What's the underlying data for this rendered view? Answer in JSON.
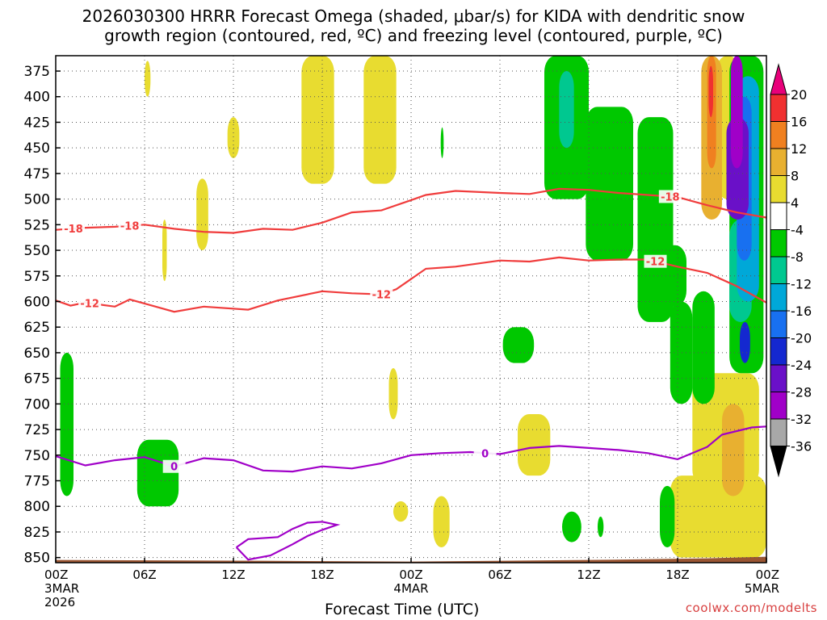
{
  "title_line1": "2026030300 HRRR Forecast Omega (shaded, μbar/s) for KIDA with dendritic snow",
  "title_line2": "growth region (contoured, red, ºC) and freezing level (contoured, purple, ºC)",
  "watermark": "coolwx.com/modelts",
  "chart_data": {
    "type": "time-height contour",
    "xlabel": "Forecast Time (UTC)",
    "x_range_hours": [
      0,
      48
    ],
    "x_ticks": [
      {
        "hour": 0,
        "label": "00Z",
        "sub1": "3MAR",
        "sub2": "2026"
      },
      {
        "hour": 6,
        "label": "06Z",
        "sub1": "",
        "sub2": ""
      },
      {
        "hour": 12,
        "label": "12Z",
        "sub1": "",
        "sub2": ""
      },
      {
        "hour": 18,
        "label": "18Z",
        "sub1": "",
        "sub2": ""
      },
      {
        "hour": 24,
        "label": "00Z",
        "sub1": "4MAR",
        "sub2": ""
      },
      {
        "hour": 30,
        "label": "06Z",
        "sub1": "",
        "sub2": ""
      },
      {
        "hour": 36,
        "label": "12Z",
        "sub1": "",
        "sub2": ""
      },
      {
        "hour": 42,
        "label": "18Z",
        "sub1": "",
        "sub2": ""
      },
      {
        "hour": 48,
        "label": "00Z",
        "sub1": "5MAR",
        "sub2": ""
      }
    ],
    "y_range_hpa": [
      360,
      855
    ],
    "y_ticks": [
      375,
      400,
      425,
      450,
      475,
      500,
      525,
      550,
      575,
      600,
      625,
      650,
      675,
      700,
      725,
      750,
      775,
      800,
      825,
      850
    ],
    "colorbar": {
      "labels": [
        "20",
        "16",
        "12",
        "8",
        "4",
        "-4",
        "-8",
        "-12",
        "-16",
        "-20",
        "-24",
        "-28",
        "-32",
        "-36"
      ],
      "colors": [
        "#e8007a",
        "#f03030",
        "#f08020",
        "#e8b030",
        "#e8dc30",
        "#ffffff",
        "#00c800",
        "#00c890",
        "#00a8d8",
        "#1870f0",
        "#1428d0",
        "#6a10c8",
        "#a000c8",
        "#a8a8a8",
        "#000000"
      ]
    },
    "contours": {
      "dgz_minus18": {
        "label": "-18",
        "color": "#f03c3c",
        "points": [
          [
            0,
            530
          ],
          [
            2,
            528
          ],
          [
            4,
            527
          ],
          [
            6,
            525
          ],
          [
            8,
            529
          ],
          [
            10,
            532
          ],
          [
            12,
            533
          ],
          [
            14,
            529
          ],
          [
            16,
            530
          ],
          [
            18,
            523
          ],
          [
            20,
            513
          ],
          [
            22,
            511
          ],
          [
            24,
            501
          ],
          [
            25,
            496
          ],
          [
            27,
            492
          ],
          [
            30,
            494
          ],
          [
            32,
            495
          ],
          [
            34,
            490
          ],
          [
            36,
            491
          ],
          [
            38,
            494
          ],
          [
            40,
            496
          ],
          [
            42,
            498
          ],
          [
            43,
            502
          ],
          [
            44,
            506
          ],
          [
            46,
            513
          ],
          [
            48,
            518
          ]
        ],
        "label_hours": [
          5,
          1.2,
          41.5
        ]
      },
      "dgz_minus12": {
        "label": "-12",
        "color": "#f03c3c",
        "points": [
          [
            0,
            599
          ],
          [
            1,
            604
          ],
          [
            2,
            601
          ],
          [
            4,
            605
          ],
          [
            5,
            598
          ],
          [
            8,
            610
          ],
          [
            10,
            605
          ],
          [
            13,
            608
          ],
          [
            15,
            599
          ],
          [
            18,
            590
          ],
          [
            20,
            592
          ],
          [
            22,
            593
          ],
          [
            23,
            588
          ],
          [
            25,
            568
          ],
          [
            27,
            566
          ],
          [
            30,
            560
          ],
          [
            32,
            561
          ],
          [
            34,
            557
          ],
          [
            36,
            560
          ],
          [
            38,
            559
          ],
          [
            40,
            559
          ],
          [
            42,
            566
          ],
          [
            44,
            572
          ],
          [
            46,
            585
          ],
          [
            48,
            601
          ]
        ],
        "label_hours": [
          2.3,
          22,
          40.5
        ]
      },
      "freezing_0": {
        "label": "0",
        "color": "#a000c8",
        "points": [
          [
            0,
            751
          ],
          [
            2,
            760
          ],
          [
            4,
            755
          ],
          [
            6,
            752
          ],
          [
            8,
            761
          ],
          [
            10,
            753
          ],
          [
            12,
            755
          ],
          [
            14,
            765
          ],
          [
            16,
            766
          ],
          [
            18,
            761
          ],
          [
            20,
            763
          ],
          [
            22,
            758
          ],
          [
            24,
            750
          ],
          [
            26,
            748
          ],
          [
            28,
            747
          ],
          [
            30,
            749
          ],
          [
            32,
            743
          ],
          [
            34,
            741
          ],
          [
            36,
            743
          ],
          [
            38,
            745
          ],
          [
            40,
            748
          ],
          [
            42,
            754
          ],
          [
            44,
            742
          ],
          [
            45,
            730
          ],
          [
            47,
            723
          ],
          [
            48,
            722
          ]
        ],
        "label_hours": [
          8,
          29
        ]
      },
      "freezing_0_closed": {
        "label": "",
        "color": "#a000c8",
        "points": [
          [
            12.2,
            840
          ],
          [
            13,
            832
          ],
          [
            15,
            830
          ],
          [
            16,
            822
          ],
          [
            17,
            816
          ],
          [
            18,
            815
          ],
          [
            19,
            818
          ],
          [
            18,
            823
          ],
          [
            17,
            829
          ],
          [
            16,
            837
          ],
          [
            14.5,
            848
          ],
          [
            13,
            852
          ],
          [
            12.2,
            840
          ]
        ]
      }
    },
    "terrain_color": "#9a5532",
    "omega_regions": [
      {
        "cat": "4",
        "h": [
          6.0,
          6.4
        ],
        "p": [
          365,
          400
        ]
      },
      {
        "cat": "4",
        "h": [
          11.6,
          12.4
        ],
        "p": [
          420,
          460
        ]
      },
      {
        "cat": "4",
        "h": [
          9.5,
          10.3
        ],
        "p": [
          480,
          550
        ]
      },
      {
        "cat": "4",
        "h": [
          7.2,
          7.5
        ],
        "p": [
          520,
          580
        ]
      },
      {
        "cat": "4",
        "h": [
          16.6,
          18.8
        ],
        "p": [
          360,
          485
        ]
      },
      {
        "cat": "4",
        "h": [
          20.8,
          23.0
        ],
        "p": [
          360,
          485
        ]
      },
      {
        "cat": "4",
        "h": [
          22.5,
          23.1
        ],
        "p": [
          665,
          715
        ]
      },
      {
        "cat": "4",
        "h": [
          31.2,
          33.4
        ],
        "p": [
          710,
          770
        ]
      },
      {
        "cat": "4",
        "h": [
          22.8,
          23.8
        ],
        "p": [
          795,
          815
        ]
      },
      {
        "cat": "4",
        "h": [
          25.5,
          26.6
        ],
        "p": [
          790,
          840
        ]
      },
      {
        "cat": "4",
        "h": [
          41.5,
          48.0
        ],
        "p": [
          770,
          850
        ]
      },
      {
        "cat": "4",
        "h": [
          43.0,
          47.5
        ],
        "p": [
          670,
          780
        ]
      },
      {
        "cat": "4",
        "h": [
          44.6,
          46.2
        ],
        "p": [
          360,
          500
        ]
      },
      {
        "cat": "8",
        "h": [
          45.0,
          46.5
        ],
        "p": [
          700,
          790
        ]
      },
      {
        "cat": "-4",
        "h": [
          0.3,
          1.2
        ],
        "p": [
          650,
          790
        ]
      },
      {
        "cat": "-4",
        "h": [
          5.5,
          8.3
        ],
        "p": [
          735,
          800
        ]
      },
      {
        "cat": "-4",
        "h": [
          26.0,
          26.2
        ],
        "p": [
          430,
          460
        ]
      },
      {
        "cat": "-4",
        "h": [
          30.2,
          32.3
        ],
        "p": [
          625,
          660
        ]
      },
      {
        "cat": "-4",
        "h": [
          34.2,
          35.5
        ],
        "p": [
          805,
          835
        ]
      },
      {
        "cat": "-4",
        "h": [
          40.0,
          42.6
        ],
        "p": [
          545,
          605
        ]
      },
      {
        "cat": "-4",
        "h": [
          40.8,
          41.8
        ],
        "p": [
          780,
          840
        ]
      },
      {
        "cat": "-4",
        "h": [
          36.6,
          37.0
        ],
        "p": [
          810,
          830
        ]
      },
      {
        "cat": "-4",
        "h": [
          39.3,
          41.7
        ],
        "p": [
          420,
          620
        ]
      },
      {
        "cat": "-4",
        "h": [
          41.5,
          43.0
        ],
        "p": [
          600,
          700
        ]
      },
      {
        "cat": "-4",
        "h": [
          43.0,
          44.5
        ],
        "p": [
          590,
          700
        ]
      },
      {
        "cat": "-4",
        "h": [
          35.8,
          39.0
        ],
        "p": [
          410,
          560
        ]
      },
      {
        "cat": "-4",
        "h": [
          33.0,
          36.0
        ],
        "p": [
          360,
          500
        ]
      },
      {
        "cat": "-4",
        "h": [
          45.5,
          47.8
        ],
        "p": [
          360,
          670
        ]
      },
      {
        "cat": "-8",
        "h": [
          34.0,
          35.0
        ],
        "p": [
          375,
          450
        ]
      },
      {
        "cat": "-8",
        "h": [
          45.5,
          47.0
        ],
        "p": [
          520,
          620
        ]
      },
      {
        "cat": "-12",
        "h": [
          46.0,
          47.5
        ],
        "p": [
          380,
          600
        ]
      },
      {
        "cat": "-16",
        "h": [
          46.0,
          47.0
        ],
        "p": [
          400,
          560
        ]
      },
      {
        "cat": "-20",
        "h": [
          46.2,
          46.9
        ],
        "p": [
          620,
          660
        ]
      },
      {
        "cat": "-24",
        "h": [
          45.3,
          46.8
        ],
        "p": [
          420,
          520
        ]
      },
      {
        "cat": "-28",
        "h": [
          45.6,
          46.4
        ],
        "p": [
          360,
          470
        ]
      },
      {
        "cat": "8",
        "h": [
          43.6,
          45.0
        ],
        "p": [
          360,
          520
        ]
      },
      {
        "cat": "12",
        "h": [
          44.0,
          44.6
        ],
        "p": [
          360,
          470
        ]
      },
      {
        "cat": "16",
        "h": [
          44.1,
          44.4
        ],
        "p": [
          370,
          420
        ]
      }
    ]
  }
}
